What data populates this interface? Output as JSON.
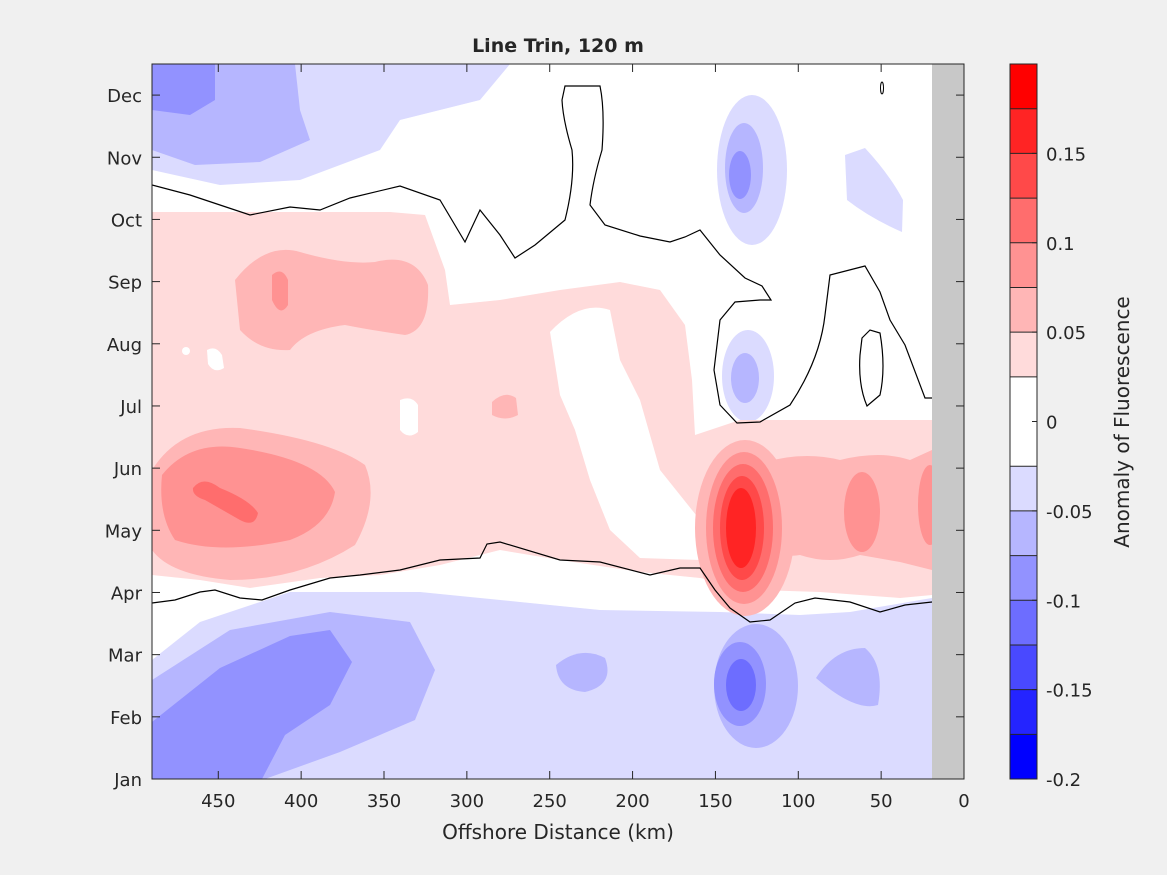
{
  "chart_data": {
    "type": "heatmap",
    "subtype": "filled-contour",
    "title": "Line Trin, 120 m",
    "xlabel": "Offshore Distance (km)",
    "ylabel": "",
    "xlim": [
      0,
      490
    ],
    "x_reversed": true,
    "x_ticks": [
      450,
      400,
      350,
      300,
      250,
      200,
      150,
      100,
      50,
      0
    ],
    "y_ticks": [
      "Jan",
      "Feb",
      "Mar",
      "Apr",
      "May",
      "Jun",
      "Jul",
      "Aug",
      "Sep",
      "Oct",
      "Nov",
      "Dec"
    ],
    "y_tick_month_positions": [
      0.5,
      1.5,
      2.5,
      3.5,
      4.5,
      5.5,
      6.5,
      7.5,
      8.5,
      9.5,
      10.5,
      11.5
    ],
    "colorbar": {
      "label": "Anomaly of Fluorescence",
      "range": [
        -0.2,
        0.2
      ],
      "tick_values": [
        -0.2,
        -0.15,
        -0.1,
        -0.05,
        0,
        0.05,
        0.1,
        0.15
      ],
      "tick_labels": [
        "-0.2",
        "-0.15",
        "-0.1",
        "-0.05",
        "0",
        "0.05",
        "0.1",
        "0.15"
      ],
      "levels": [
        -0.2,
        -0.175,
        -0.15,
        -0.125,
        -0.1,
        -0.075,
        -0.05,
        -0.025,
        0.025,
        0.05,
        0.075,
        0.1,
        0.125,
        0.15,
        0.175,
        0.2
      ],
      "colors": [
        "#0000ff",
        "#2424ff",
        "#4949ff",
        "#6d6dff",
        "#9292ff",
        "#b6b6ff",
        "#dbdbff",
        "#ffffff",
        "#ffdbdb",
        "#ffb6b6",
        "#ff9292",
        "#ff6d6d",
        "#ff4949",
        "#ff2424",
        "#ff0000"
      ]
    },
    "no_data_region_km": [
      0,
      20
    ],
    "no_data_color": "#c8c8c8",
    "features": [
      {
        "x": 460,
        "month": 5.7,
        "value": 0.1,
        "kind": "positive peak"
      },
      {
        "x": 130,
        "month": 5.0,
        "value": 0.19,
        "kind": "positive peak"
      },
      {
        "x": 130,
        "month": 2.3,
        "value": -0.1,
        "kind": "negative minimum"
      },
      {
        "x": 420,
        "month": 2.0,
        "value": -0.075,
        "kind": "negative minimum"
      },
      {
        "x": 130,
        "month": 10.9,
        "value": -0.075,
        "kind": "negative minimum"
      }
    ]
  }
}
